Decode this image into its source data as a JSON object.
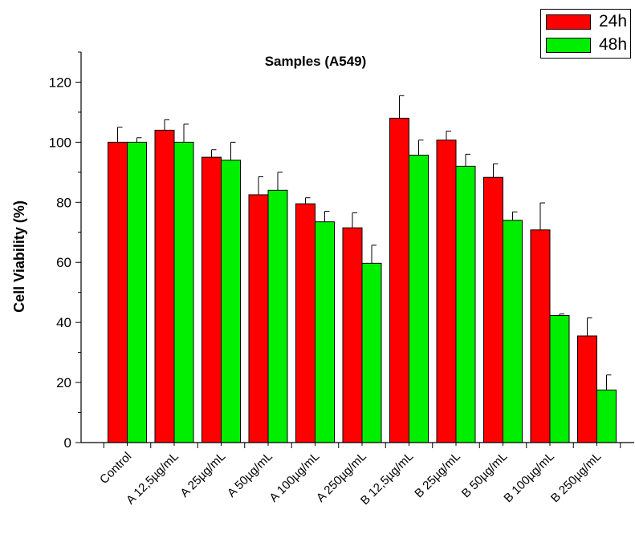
{
  "chart_data": {
    "type": "bar",
    "title": "Samples (A549)",
    "xlabel": "",
    "ylabel": "Cell Viability (%)",
    "ylim": [
      0,
      130
    ],
    "yticks": [
      0,
      20,
      40,
      60,
      80,
      100,
      120
    ],
    "grid": false,
    "legend_position": "top-right",
    "categories": [
      "Control",
      "A 12,5µg/mL",
      "A 25µg/mL",
      "A 50µg/mL",
      "A 100µg/mL",
      "A 250µg/mL",
      "B 12,5µg/mL",
      "B 25µg/mL",
      "B 50µg/mL",
      "B 100µg/mL",
      "B 250µg/mL"
    ],
    "series": [
      {
        "name": "24h",
        "color": "#ff0000",
        "values": [
          100,
          104,
          95,
          82.5,
          79.5,
          71.5,
          108,
          100.7,
          88.3,
          70.8,
          35.5
        ],
        "errors": [
          5,
          3.5,
          2.5,
          6,
          2,
          5,
          7.5,
          3,
          4.5,
          9,
          6
        ]
      },
      {
        "name": "48h",
        "color": "#00ee00",
        "values": [
          100,
          100,
          94,
          84,
          73.5,
          59.7,
          95.7,
          92,
          74,
          42.3,
          17.5
        ],
        "errors": [
          1.5,
          6,
          6,
          6,
          3.5,
          6,
          5,
          4,
          2.8,
          0.5,
          5
        ]
      }
    ]
  }
}
